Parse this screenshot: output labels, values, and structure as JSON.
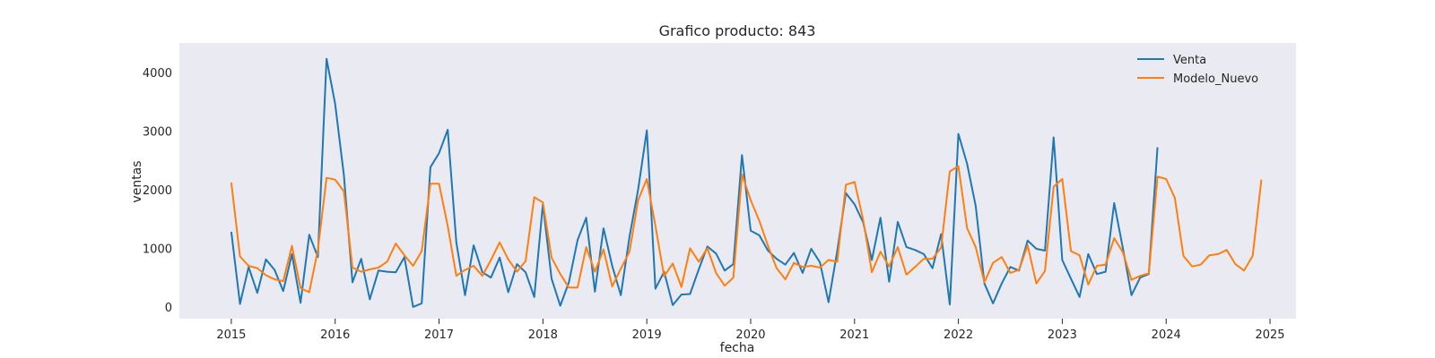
{
  "chart_data": {
    "type": "line",
    "title": "Grafico producto: 843",
    "xlabel": "fecha",
    "ylabel": "ventas",
    "xlim": [
      "2014-07-01",
      "2025-04-01"
    ],
    "ylim": [
      -200,
      4500
    ],
    "x_ticks": [
      "2015",
      "2016",
      "2017",
      "2018",
      "2019",
      "2020",
      "2021",
      "2022",
      "2023",
      "2024",
      "2025"
    ],
    "y_ticks": [
      0,
      1000,
      2000,
      3000,
      4000
    ],
    "grid": false,
    "background": "#eaeaf2",
    "legend_position": "top-right",
    "series": [
      {
        "name": "Venta",
        "color": "#1f77b4",
        "start": "2015-01",
        "values": [
          1280,
          50,
          680,
          240,
          810,
          630,
          270,
          900,
          70,
          1230,
          850,
          4230,
          3460,
          2250,
          420,
          820,
          130,
          620,
          600,
          590,
          850,
          0,
          60,
          2380,
          2620,
          3020,
          1100,
          200,
          1050,
          590,
          500,
          840,
          250,
          730,
          590,
          170,
          1750,
          480,
          20,
          420,
          1140,
          1520,
          260,
          1340,
          700,
          200,
          1200,
          2000,
          3010,
          310,
          600,
          30,
          210,
          220,
          640,
          1030,
          910,
          620,
          730,
          2590,
          1300,
          1220,
          960,
          820,
          720,
          920,
          580,
          990,
          760,
          80,
          950,
          1940,
          1750,
          1440,
          800,
          1520,
          430,
          1450,
          1020,
          970,
          900,
          660,
          1240,
          40,
          2950,
          2440,
          1720,
          400,
          60,
          400,
          680,
          620,
          1130,
          990,
          960,
          2890,
          800,
          480,
          170,
          900,
          560,
          600,
          1770,
          1000,
          200,
          500,
          560,
          2720
        ]
      },
      {
        "name": "Modelo_Nuevo",
        "color": "#ff7f0e",
        "start": "2015-01",
        "values": [
          2120,
          860,
          700,
          660,
          540,
          470,
          440,
          1040,
          320,
          250,
          970,
          2200,
          2170,
          1970,
          670,
          600,
          640,
          670,
          770,
          1080,
          880,
          700,
          950,
          2100,
          2100,
          1380,
          530,
          630,
          700,
          530,
          800,
          1100,
          810,
          600,
          780,
          1870,
          1780,
          840,
          560,
          330,
          330,
          1020,
          600,
          980,
          350,
          650,
          940,
          1820,
          2180,
          1380,
          520,
          740,
          340,
          1000,
          770,
          1000,
          580,
          360,
          500,
          2260,
          1820,
          1470,
          1040,
          660,
          470,
          750,
          680,
          700,
          670,
          800,
          770,
          2080,
          2130,
          1490,
          590,
          940,
          690,
          1020,
          550,
          680,
          820,
          820,
          1010,
          2310,
          2400,
          1340,
          1020,
          420,
          750,
          850,
          580,
          630,
          1050,
          400,
          610,
          2050,
          2180,
          950,
          880,
          380,
          700,
          720,
          1170,
          930,
          460,
          530,
          570,
          2220,
          2180,
          1860,
          870,
          690,
          720,
          880,
          900,
          970,
          730,
          620,
          870,
          2170
        ]
      }
    ]
  }
}
